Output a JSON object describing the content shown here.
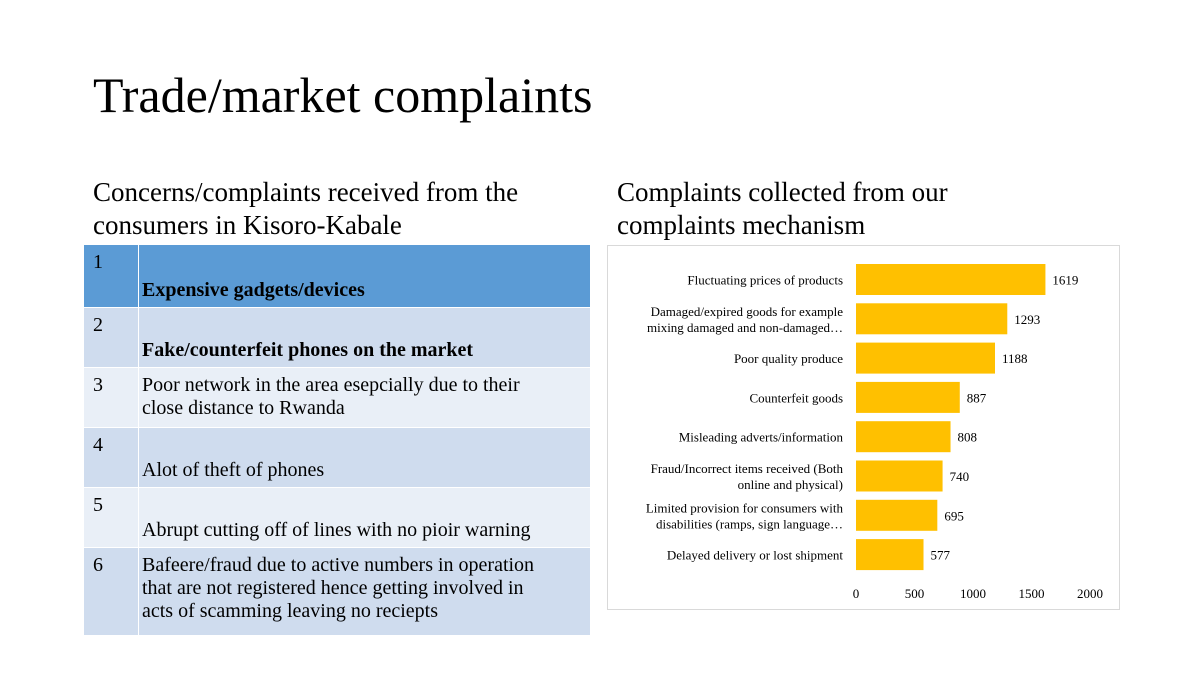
{
  "slide": {
    "title": "Trade/market complaints",
    "left_heading_line1": "Concerns/complaints received from the",
    "left_heading_line2": "consumers in Kisoro-Kabale",
    "right_heading_line1": "Complaints collected from our",
    "right_heading_line2": "complaints mechanism"
  },
  "table": {
    "rows": [
      {
        "num": "1",
        "lines": [
          "Expensive gadgets/devices"
        ],
        "bold": true,
        "bottom": true
      },
      {
        "num": "2",
        "lines": [
          "Fake/counterfeit phones on the market"
        ],
        "bold": true,
        "bottom": true
      },
      {
        "num": "3",
        "lines": [
          "Poor network in the area esepcially due to their",
          "close distance to Rwanda"
        ],
        "bold": false,
        "bottom": false
      },
      {
        "num": "4",
        "lines": [
          "Alot of theft of phones"
        ],
        "bold": false,
        "bottom": true
      },
      {
        "num": "5",
        "lines": [
          "Abrupt cutting off of lines with no pioir warning"
        ],
        "bold": false,
        "bottom": true
      },
      {
        "num": "6",
        "lines": [
          "Bafeere/fraud due to active numbers in operation",
          "that are not registered hence getting involved in",
          "acts of scamming leaving no reciepts"
        ],
        "bold": false,
        "bottom": false
      }
    ]
  },
  "chart_data": {
    "type": "bar",
    "orientation": "horizontal",
    "title": "",
    "xlabel": "",
    "ylabel": "",
    "categories": [
      [
        "Fluctuating prices of products"
      ],
      [
        "Damaged/expired goods for example",
        "mixing damaged and non-damaged…"
      ],
      [
        "Poor quality produce"
      ],
      [
        "Counterfeit goods"
      ],
      [
        "Misleading adverts/information"
      ],
      [
        "Fraud/Incorrect items received (Both",
        "online and physical)"
      ],
      [
        "Limited provision for consumers with",
        "disabilities (ramps, sign language…"
      ],
      [
        "Delayed delivery or lost shipment"
      ]
    ],
    "values": [
      1619,
      1293,
      1188,
      887,
      808,
      740,
      695,
      577
    ],
    "xlim": [
      0,
      2000
    ],
    "xticks": [
      "0",
      "500",
      "1000",
      "1500",
      "2000"
    ],
    "bar_color": "#ffc000",
    "grid": false,
    "legend": "none"
  }
}
